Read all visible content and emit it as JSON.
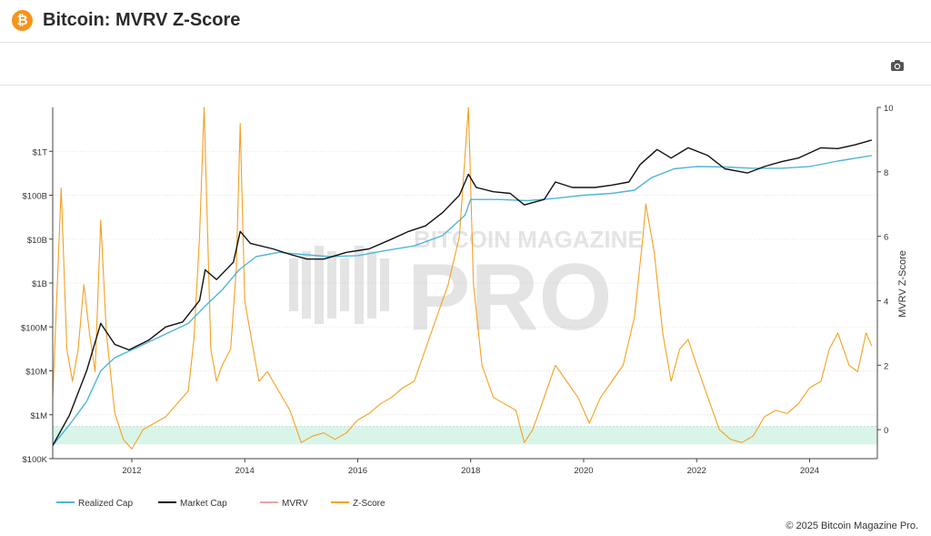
{
  "header": {
    "title": "Bitcoin: MVRV Z-Score",
    "logo_icon": "bitcoin-icon",
    "logo_glyph": "₿"
  },
  "toolbar": {
    "camera_icon": "camera-icon"
  },
  "watermark": {
    "line1": "BITCOIN MAGAZINE",
    "line2": "PRO"
  },
  "footer": {
    "copyright": "© 2025 Bitcoin Magazine Pro."
  },
  "colors": {
    "realized_cap": "#4fb6d6",
    "market_cap": "#111111",
    "mvrv": "#f0a3a3",
    "z_score": "#f6a020",
    "top_band": "#fde3e4",
    "bottom_band": "#d9f5e9"
  },
  "chart_data": {
    "type": "line",
    "title": "Bitcoin: MVRV Z-Score",
    "x_tick_labels": [
      "2012",
      "2014",
      "2016",
      "2018",
      "2020",
      "2022",
      "2024"
    ],
    "x_range": [
      2010.6,
      2025.2
    ],
    "left_axis": {
      "scale": "log",
      "tick_labels": [
        "$100K",
        "$1M",
        "$10M",
        "$100M",
        "$1B",
        "$10B",
        "$100B",
        "$1T"
      ],
      "tick_values": [
        100000,
        1000000,
        10000000,
        100000000,
        1000000000,
        10000000000,
        100000000000,
        1000000000000
      ],
      "range": [
        100000,
        10000000000000
      ]
    },
    "right_axis": {
      "label": "MVRV Z-Score",
      "tick_labels": [
        "0",
        "2",
        "4",
        "6",
        "8",
        "10"
      ],
      "tick_values": [
        0,
        2,
        4,
        6,
        8,
        10
      ],
      "range": [
        -0.9,
        10
      ]
    },
    "bands": [
      {
        "axis": "left",
        "from": 100000000000000,
        "to": 1000000000000000,
        "color": "#fde3e4"
      },
      {
        "axis": "right",
        "from": -0.45,
        "to": 0.1,
        "color": "#d9f5e9"
      }
    ],
    "legend": {
      "position": "bottom-left",
      "entries": [
        {
          "name": "Realized Cap",
          "color": "#4fb6d6"
        },
        {
          "name": "Market Cap",
          "color": "#111111"
        },
        {
          "name": "MVRV",
          "color": "#f0a3a3"
        },
        {
          "name": "Z-Score",
          "color": "#f6a020"
        }
      ]
    },
    "series": [
      {
        "name": "Market Cap",
        "axis": "left",
        "color": "#111111",
        "x": [
          2010.6,
          2010.9,
          2011.2,
          2011.45,
          2011.7,
          2011.95,
          2012.3,
          2012.6,
          2012.9,
          2013.2,
          2013.3,
          2013.5,
          2013.8,
          2013.92,
          2014.1,
          2014.5,
          2014.8,
          2015.1,
          2015.4,
          2015.8,
          2016.2,
          2016.6,
          2016.9,
          2017.2,
          2017.5,
          2017.8,
          2017.96,
          2018.1,
          2018.4,
          2018.7,
          2018.95,
          2019.3,
          2019.5,
          2019.8,
          2020.2,
          2020.5,
          2020.8,
          2021.0,
          2021.3,
          2021.55,
          2021.85,
          2022.2,
          2022.5,
          2022.9,
          2023.2,
          2023.5,
          2023.8,
          2024.2,
          2024.5,
          2024.8,
          2025.1
        ],
        "values": [
          200000,
          1000000,
          10000000,
          120000000,
          40000000,
          30000000,
          50000000,
          100000000,
          130000000,
          400000000,
          2000000000,
          1200000000,
          3000000000,
          15000000000,
          8000000000,
          6000000000,
          4500000000,
          3500000000,
          3500000000,
          5000000000,
          6000000000,
          10000000000,
          15000000000,
          20000000000,
          40000000000,
          100000000000,
          300000000000,
          150000000000,
          120000000000,
          110000000000,
          60000000000,
          80000000000,
          200000000000,
          150000000000,
          150000000000,
          170000000000,
          200000000000,
          500000000000,
          1100000000000,
          700000000000,
          1200000000000,
          800000000000,
          400000000000,
          320000000000,
          450000000000,
          580000000000,
          700000000000,
          1200000000000,
          1150000000000,
          1400000000000,
          1800000000000
        ]
      },
      {
        "name": "Realized Cap",
        "axis": "left",
        "color": "#4fb6d6",
        "x": [
          2010.6,
          2010.9,
          2011.2,
          2011.45,
          2011.7,
          2012.0,
          2012.5,
          2013.0,
          2013.3,
          2013.6,
          2013.9,
          2014.2,
          2014.6,
          2015.0,
          2015.5,
          2016.0,
          2016.5,
          2017.0,
          2017.5,
          2017.9,
          2018.0,
          2018.5,
          2019.0,
          2019.5,
          2020.0,
          2020.5,
          2020.9,
          2021.2,
          2021.6,
          2022.0,
          2022.5,
          2023.0,
          2023.5,
          2024.0,
          2024.5,
          2025.1
        ],
        "values": [
          200000,
          600000,
          2000000,
          10000000,
          20000000,
          30000000,
          60000000,
          120000000,
          300000000,
          700000000,
          2000000000,
          4000000000,
          5000000000,
          4500000000,
          4000000000,
          4200000000,
          5500000000,
          7000000000,
          12000000000,
          35000000000,
          80000000000,
          80000000000,
          75000000000,
          85000000000,
          100000000000,
          110000000000,
          130000000000,
          250000000000,
          400000000000,
          450000000000,
          440000000000,
          410000000000,
          410000000000,
          450000000000,
          600000000000,
          800000000000
        ]
      },
      {
        "name": "Z-Score",
        "axis": "right",
        "color": "#f6a020",
        "x": [
          2010.6,
          2010.75,
          2010.85,
          2010.95,
          2011.05,
          2011.15,
          2011.25,
          2011.35,
          2011.45,
          2011.55,
          2011.7,
          2011.85,
          2012.0,
          2012.2,
          2012.4,
          2012.6,
          2012.8,
          2013.0,
          2013.1,
          2013.2,
          2013.28,
          2013.4,
          2013.5,
          2013.6,
          2013.75,
          2013.85,
          2013.92,
          2014.0,
          2014.1,
          2014.25,
          2014.4,
          2014.6,
          2014.8,
          2015.0,
          2015.2,
          2015.4,
          2015.6,
          2015.8,
          2016.0,
          2016.2,
          2016.4,
          2016.6,
          2016.8,
          2017.0,
          2017.2,
          2017.4,
          2017.6,
          2017.8,
          2017.96,
          2018.05,
          2018.2,
          2018.4,
          2018.6,
          2018.8,
          2018.95,
          2019.1,
          2019.3,
          2019.5,
          2019.7,
          2019.9,
          2020.1,
          2020.3,
          2020.5,
          2020.7,
          2020.9,
          2021.05,
          2021.1,
          2021.25,
          2021.4,
          2021.55,
          2021.7,
          2021.85,
          2022.0,
          2022.2,
          2022.4,
          2022.6,
          2022.8,
          2023.0,
          2023.2,
          2023.4,
          2023.6,
          2023.8,
          2024.0,
          2024.2,
          2024.35,
          2024.5,
          2024.6,
          2024.7,
          2024.85,
          2025.0,
          2025.1
        ],
        "values": [
          1.0,
          7.5,
          2.5,
          1.5,
          2.5,
          4.5,
          3.0,
          1.8,
          6.5,
          3.0,
          0.5,
          -0.3,
          -0.6,
          0.0,
          0.2,
          0.4,
          0.8,
          1.2,
          2.8,
          6.0,
          10.0,
          2.5,
          1.5,
          2.0,
          2.5,
          5.0,
          9.5,
          4.0,
          3.0,
          1.5,
          1.8,
          1.2,
          0.6,
          -0.4,
          -0.2,
          -0.1,
          -0.3,
          -0.1,
          0.3,
          0.5,
          0.8,
          1.0,
          1.3,
          1.5,
          2.5,
          3.5,
          4.5,
          6.0,
          10.0,
          4.5,
          2.0,
          1.0,
          0.8,
          0.6,
          -0.4,
          0.0,
          1.0,
          2.0,
          1.5,
          1.0,
          0.2,
          1.0,
          1.5,
          2.0,
          3.5,
          6.0,
          7.0,
          5.5,
          3.0,
          1.5,
          2.5,
          2.8,
          2.0,
          1.0,
          0.0,
          -0.3,
          -0.4,
          -0.2,
          0.4,
          0.6,
          0.5,
          0.8,
          1.3,
          1.5,
          2.5,
          3.0,
          2.5,
          2.0,
          1.8,
          3.0,
          2.6
        ]
      }
    ]
  }
}
